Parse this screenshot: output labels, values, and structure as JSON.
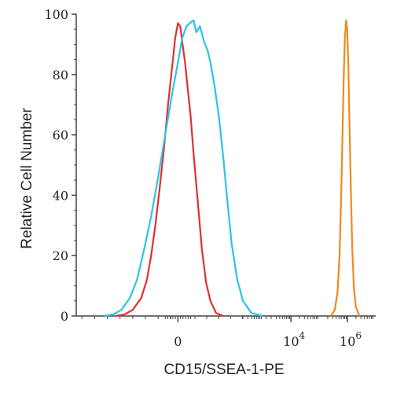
{
  "chart_data": {
    "type": "line",
    "xlabel": "CD15/SSEA-1-PE",
    "ylabel": "Relative Cell Number",
    "ylim": [
      0,
      100
    ],
    "y_ticks": [
      0,
      20,
      40,
      60,
      80,
      100
    ],
    "x_scale": "biexponential",
    "x_tick_labels": [
      {
        "base": "0",
        "exp": ""
      },
      {
        "base": "10",
        "exp": "4"
      },
      {
        "base": "10",
        "exp": "6"
      }
    ],
    "grid": false,
    "legend": "none",
    "series": [
      {
        "color": "#e03030",
        "points": [
          [
            -2.2,
            0
          ],
          [
            -1.9,
            0.5
          ],
          [
            -1.6,
            2
          ],
          [
            -1.3,
            6
          ],
          [
            -1.1,
            12
          ],
          [
            -0.95,
            20
          ],
          [
            -0.8,
            30
          ],
          [
            -0.65,
            42
          ],
          [
            -0.5,
            55
          ],
          [
            -0.35,
            70
          ],
          [
            -0.2,
            83
          ],
          [
            -0.1,
            92
          ],
          [
            0,
            97
          ],
          [
            0.08,
            96
          ],
          [
            0.15,
            91
          ],
          [
            0.25,
            84
          ],
          [
            0.35,
            75
          ],
          [
            0.45,
            66
          ],
          [
            0.55,
            54
          ],
          [
            0.7,
            38
          ],
          [
            0.85,
            22
          ],
          [
            1.0,
            11
          ],
          [
            1.15,
            5
          ],
          [
            1.35,
            1
          ],
          [
            1.6,
            0
          ]
        ]
      },
      {
        "color": "#2ec3e6",
        "points": [
          [
            -2.6,
            0
          ],
          [
            -2.3,
            0.5
          ],
          [
            -2.0,
            2
          ],
          [
            -1.7,
            6
          ],
          [
            -1.45,
            12
          ],
          [
            -1.2,
            22
          ],
          [
            -0.95,
            33
          ],
          [
            -0.7,
            46
          ],
          [
            -0.45,
            60
          ],
          [
            -0.2,
            74
          ],
          [
            0,
            84
          ],
          [
            0.15,
            92
          ],
          [
            0.3,
            96
          ],
          [
            0.42,
            97
          ],
          [
            0.55,
            98
          ],
          [
            0.65,
            94
          ],
          [
            0.78,
            96
          ],
          [
            0.92,
            91
          ],
          [
            1.05,
            88
          ],
          [
            1.15,
            84
          ],
          [
            1.3,
            76
          ],
          [
            1.45,
            66
          ],
          [
            1.6,
            53
          ],
          [
            1.75,
            38
          ],
          [
            1.9,
            24
          ],
          [
            2.1,
            12
          ],
          [
            2.3,
            5
          ],
          [
            2.6,
            1
          ],
          [
            3.0,
            0
          ]
        ]
      },
      {
        "color": "#f08a1e",
        "points": [
          [
            5.42,
            0
          ],
          [
            5.55,
            2
          ],
          [
            5.65,
            8
          ],
          [
            5.72,
            20
          ],
          [
            5.78,
            40
          ],
          [
            5.83,
            62
          ],
          [
            5.87,
            80
          ],
          [
            5.91,
            92
          ],
          [
            5.95,
            98
          ],
          [
            5.99,
            95
          ],
          [
            6.03,
            84
          ],
          [
            6.07,
            64
          ],
          [
            6.12,
            42
          ],
          [
            6.17,
            22
          ],
          [
            6.23,
            9
          ],
          [
            6.3,
            3
          ],
          [
            6.42,
            0
          ]
        ]
      }
    ]
  }
}
